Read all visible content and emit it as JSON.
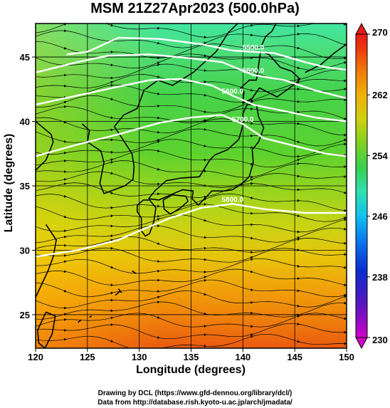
{
  "title": "MSM 21Z27Apr2023 (500.0hPa)",
  "xlabel": "Longitude (degrees)",
  "ylabel": "Latitude  (degrees)",
  "credits": {
    "line1": "Drawing by DCL (https://www.gfd-dennou.org/library/dcl/)",
    "line2": "Data from http://database.rish.kyoto-u.ac.jp/arch/jmadata/"
  },
  "chart_data": {
    "type": "heatmap",
    "xlim": [
      120,
      150
    ],
    "ylim": [
      22.4,
      47.6
    ],
    "x_ticks": [
      120,
      125,
      130,
      135,
      140,
      145,
      150
    ],
    "y_ticks": [
      25,
      30,
      35,
      40,
      45
    ],
    "grid": true,
    "colorbar": {
      "min": 230,
      "max": 270,
      "tick_labels": [
        "230",
        "238",
        "246",
        "254",
        "262",
        "270"
      ],
      "placement": "right"
    },
    "contours": [
      {
        "label": "5500.0",
        "color": "#ffffff",
        "points": [
          [
            123,
            45.2
          ],
          [
            125,
            45.4
          ],
          [
            128,
            46.5
          ],
          [
            132,
            46.4
          ],
          [
            136,
            46.0
          ],
          [
            139,
            45.5
          ],
          [
            141,
            45.4
          ],
          [
            143,
            45.3
          ],
          [
            146,
            44.6
          ],
          [
            148,
            44.2
          ],
          [
            150,
            44.0
          ]
        ]
      },
      {
        "label": "5600.0",
        "color": "#ffffff",
        "points": [
          [
            120,
            43.8
          ],
          [
            124,
            44.6
          ],
          [
            127,
            45.1
          ],
          [
            131,
            45.2
          ],
          [
            135,
            44.9
          ],
          [
            138,
            44.6
          ],
          [
            141,
            43.6
          ],
          [
            144,
            43.2
          ],
          [
            147,
            42.4
          ],
          [
            150,
            41.8
          ]
        ]
      },
      {
        "label": "5600.0",
        "color": "#ffffff",
        "points": [
          [
            120,
            41.3
          ],
          [
            124,
            42.0
          ],
          [
            128,
            42.7
          ],
          [
            131,
            43.2
          ],
          [
            134,
            43.3
          ],
          [
            137,
            42.8
          ],
          [
            139,
            42.0
          ],
          [
            141,
            41.3
          ],
          [
            144,
            40.8
          ],
          [
            147,
            40.3
          ],
          [
            150,
            40.0
          ]
        ]
      },
      {
        "label": "5700.0",
        "color": "#ffffff",
        "points": [
          [
            120,
            37.3
          ],
          [
            124,
            38.2
          ],
          [
            128,
            39.0
          ],
          [
            132,
            39.9
          ],
          [
            135,
            40.3
          ],
          [
            138,
            40.5
          ],
          [
            140,
            39.8
          ],
          [
            142,
            38.7
          ],
          [
            145,
            38.1
          ],
          [
            148,
            37.5
          ],
          [
            150,
            37.3
          ]
        ]
      },
      {
        "label": "5800.0",
        "color": "#ffffff",
        "points": [
          [
            120,
            29.5
          ],
          [
            124,
            30.0
          ],
          [
            128,
            30.8
          ],
          [
            130,
            31.5
          ],
          [
            133,
            32.5
          ],
          [
            136,
            33.3
          ],
          [
            139,
            33.6
          ],
          [
            142,
            33.2
          ],
          [
            146,
            32.9
          ],
          [
            150,
            32.9
          ]
        ]
      }
    ],
    "wind": {
      "u": 1.0,
      "v": 0.05,
      "description": "streamlines, predominantly westerly"
    }
  }
}
